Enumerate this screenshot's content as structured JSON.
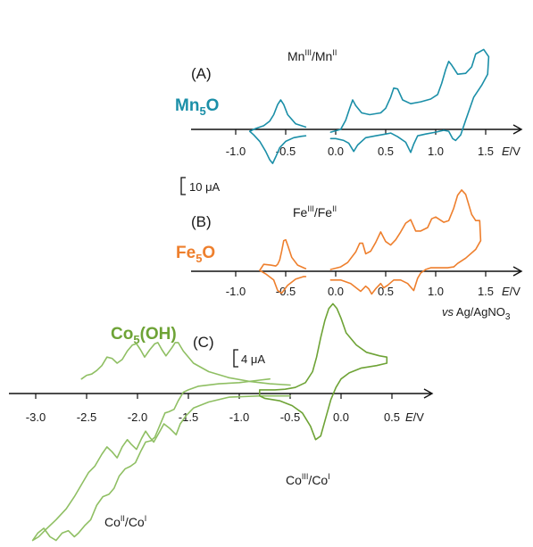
{
  "chart_data": [
    {
      "type": "line",
      "panel_label": "(A)",
      "compound": "Mn",
      "compound_sub": "5",
      "compound_tail": "O",
      "couple": {
        "a": "Mn",
        "a_sup": "III",
        "b": "Mn",
        "b_sup": "II"
      },
      "color": "#1b8fa8",
      "x_ticks": [
        "-1.0",
        "-0.5",
        "0.0",
        "0.5",
        "1.0",
        "1.5"
      ],
      "xlabel_italic": "E",
      "xlabel_unit": "/V",
      "xlim": [
        -1.1,
        1.65
      ],
      "scale_bar": "10 μA",
      "series": [
        {
          "x": [
            -0.3,
            -0.4,
            -0.48,
            -0.52,
            -0.55,
            -0.58,
            -0.62,
            -0.66,
            -0.72,
            -0.8,
            -0.86,
            -0.82,
            -0.76,
            -0.7,
            -0.66,
            -0.63,
            -0.6,
            -0.56,
            -0.5,
            -0.42,
            -0.34,
            -0.3
          ],
          "y": [
            0.25,
            0.6,
            1.6,
            2.7,
            3.2,
            2.7,
            1.6,
            0.9,
            0.4,
            0.1,
            -0.2,
            -0.6,
            -1.3,
            -2.4,
            -3.3,
            -3.7,
            -3.0,
            -2.0,
            -1.3,
            -0.9,
            -0.75,
            -0.7
          ]
        },
        {
          "x": [
            -0.05,
            0.05,
            0.1,
            0.14,
            0.17,
            0.2,
            0.26,
            0.34,
            0.45,
            0.5,
            0.55,
            0.58,
            0.62,
            0.67,
            0.75,
            0.85,
            0.95,
            1.02,
            1.06,
            1.1,
            1.13,
            1.16,
            1.22,
            1.3,
            1.36,
            1.4,
            1.48,
            1.53,
            1.52,
            1.46,
            1.38,
            1.3,
            1.25,
            1.2,
            1.17,
            1.13,
            1.08,
            1.0,
            0.9,
            0.82,
            0.78,
            0.75,
            0.7,
            0.62,
            0.55,
            0.5,
            0.4,
            0.3,
            0.22,
            0.18,
            0.13,
            0.08,
            0.0,
            -0.05
          ],
          "y": [
            -0.3,
            0.0,
            1.0,
            2.3,
            3.2,
            2.6,
            1.8,
            1.6,
            1.8,
            2.3,
            3.5,
            4.5,
            4.4,
            3.2,
            2.8,
            3.0,
            3.3,
            3.8,
            5.0,
            6.5,
            7.4,
            7.0,
            6.0,
            6.1,
            6.8,
            8.2,
            8.7,
            7.9,
            6.0,
            4.8,
            3.5,
            1.0,
            -0.6,
            -1.2,
            -1.0,
            -0.2,
            -0.1,
            -0.3,
            -0.5,
            -0.7,
            -1.6,
            -2.5,
            -1.4,
            -0.8,
            -0.4,
            -0.5,
            -0.7,
            -0.9,
            -1.7,
            -2.4,
            -1.5,
            -1.2,
            -1.0,
            -1.0
          ]
        }
      ]
    },
    {
      "type": "line",
      "panel_label": "(B)",
      "compound": "Fe",
      "compound_sub": "5",
      "compound_tail": "O",
      "couple": {
        "a": "Fe",
        "a_sup": "III",
        "b": "Fe",
        "b_sup": "II"
      },
      "color": "#ee7f2d",
      "x_ticks": [
        "-1.0",
        "-0.5",
        "0.0",
        "0.5",
        "1.0",
        "1.5"
      ],
      "xlabel_italic": "E",
      "xlabel_unit": "/V",
      "xlim": [
        -1.1,
        1.65
      ],
      "reference_italic": "vs",
      "reference": "Ag/AgNO",
      "reference_sub": "3",
      "series": [
        {
          "x": [
            -0.3,
            -0.38,
            -0.44,
            -0.48,
            -0.5,
            -0.52,
            -0.54,
            -0.56,
            -0.58,
            -0.6,
            -0.65,
            -0.72,
            -0.76,
            -0.7,
            -0.62,
            -0.58,
            -0.54,
            -0.48,
            -0.4,
            -0.32,
            -0.3
          ],
          "y": [
            0.3,
            0.7,
            1.6,
            3.0,
            3.6,
            3.5,
            2.3,
            1.3,
            0.8,
            0.6,
            0.7,
            0.8,
            0.1,
            -0.3,
            -1.0,
            -2.2,
            -2.5,
            -1.6,
            -0.9,
            -0.6,
            -0.6
          ]
        },
        {
          "x": [
            -0.05,
            0.05,
            0.12,
            0.2,
            0.24,
            0.27,
            0.3,
            0.35,
            0.4,
            0.45,
            0.5,
            0.55,
            0.6,
            0.65,
            0.7,
            0.75,
            0.8,
            0.85,
            0.92,
            0.96,
            1.0,
            1.08,
            1.13,
            1.18,
            1.22,
            1.26,
            1.3,
            1.36,
            1.4,
            1.44,
            1.45,
            1.4,
            1.3,
            1.22,
            1.18,
            1.12,
            1.05,
            0.95,
            0.9,
            0.85,
            0.82,
            0.78,
            0.72,
            0.65,
            0.58,
            0.52,
            0.48,
            0.45,
            0.4,
            0.36,
            0.33,
            0.3,
            0.25,
            0.15,
            0.05,
            -0.05
          ],
          "y": [
            0.2,
            0.5,
            1.0,
            2.2,
            3.2,
            3.2,
            2.0,
            2.3,
            3.3,
            4.5,
            3.4,
            3.0,
            3.6,
            4.5,
            5.5,
            5.9,
            4.6,
            4.6,
            5.0,
            6.0,
            6.2,
            5.6,
            5.8,
            7.2,
            8.7,
            9.3,
            8.8,
            6.5,
            5.8,
            5.8,
            3.5,
            2.5,
            1.5,
            0.9,
            0.5,
            0.4,
            0.4,
            0.4,
            0.2,
            -0.2,
            -0.8,
            -2.2,
            -1.4,
            -1.0,
            -1.0,
            -1.6,
            -1.9,
            -1.4,
            -2.0,
            -2.6,
            -2.0,
            -1.7,
            -2.3,
            -1.4,
            -1.0,
            -1.0
          ]
        }
      ]
    },
    {
      "type": "line",
      "panel_label": "(C)",
      "compound": "Co",
      "compound_sub": "5",
      "compound_tail": "(OH)",
      "couple_right": {
        "a": "Co",
        "a_sup": "III",
        "b": "Co",
        "b_sup": "I"
      },
      "couple_left": {
        "a": "Co",
        "a_sup": "II",
        "b": "Co",
        "b_sup": "I"
      },
      "color": "#6ea336",
      "x_ticks": [
        "-3.0",
        "-2.5",
        "-2.0",
        "-1.5",
        "-1.0",
        "-0.5",
        "0.0",
        "0.5"
      ],
      "xlabel_italic": "E",
      "xlabel_unit": "/V",
      "xlim": [
        -3.3,
        0.75
      ],
      "scale_bar": "4 μA",
      "series": [
        {
          "name": "Co(II)/Co(I) scan",
          "x": [
            -0.5,
            -0.8,
            -1.1,
            -1.3,
            -1.45,
            -1.52,
            -1.58,
            -1.62,
            -1.68,
            -1.74,
            -1.78,
            -1.84,
            -1.88,
            -1.92,
            -1.96,
            -2.01,
            -2.06,
            -2.1,
            -2.15,
            -2.2,
            -2.25,
            -2.3,
            -2.35,
            -2.42,
            -2.48,
            -2.55,
            -2.62,
            -2.7,
            -2.8,
            -2.9,
            -2.97,
            -3.03,
            -2.98,
            -2.92,
            -2.86,
            -2.8,
            -2.74,
            -2.68,
            -2.62,
            -2.58,
            -2.52,
            -2.46,
            -2.4,
            -2.34,
            -2.28,
            -2.23,
            -2.18,
            -2.12,
            -2.07,
            -2.02,
            -1.97,
            -1.92,
            -1.87,
            -1.83,
            -1.78,
            -1.73,
            -1.69,
            -1.64,
            -1.6,
            -1.55,
            -1.5,
            -1.4,
            -1.2,
            -1.0,
            -0.8,
            -0.7
          ],
          "y": [
            -0.2,
            -0.2,
            -0.3,
            -0.7,
            -1.2,
            -1.8,
            -2.5,
            -3.4,
            -2.9,
            -2.5,
            -3.1,
            -4.0,
            -3.6,
            -3.1,
            -3.7,
            -4.6,
            -4.2,
            -3.8,
            -4.4,
            -5.3,
            -4.8,
            -4.4,
            -5.0,
            -6.0,
            -6.5,
            -7.5,
            -8.5,
            -9.5,
            -10.4,
            -11.2,
            -11.8,
            -12.1,
            -11.5,
            -11.1,
            -11.8,
            -12.1,
            -11.5,
            -11.3,
            -11.8,
            -11.5,
            -10.9,
            -10.4,
            -9.2,
            -8.5,
            -8.3,
            -7.8,
            -6.8,
            -6.2,
            -6.0,
            -5.7,
            -4.8,
            -4.0,
            -3.9,
            -3.6,
            -2.6,
            -1.6,
            -1.5,
            -1.3,
            -0.6,
            0.1,
            0.3,
            0.6,
            0.8,
            0.9,
            1.1,
            1.2
          ]
        },
        {
          "name": "Co(II)/Co(I) reverse",
          "x": [
            -0.5,
            -0.7,
            -0.9,
            -1.1,
            -1.3,
            -1.45,
            -1.55,
            -1.6,
            -1.63,
            -1.66,
            -1.72,
            -1.76,
            -1.8,
            -1.83,
            -1.88,
            -1.93,
            -1.97,
            -2.01,
            -2.05,
            -2.1,
            -2.15,
            -2.2,
            -2.25,
            -2.3,
            -2.35,
            -2.4,
            -2.45,
            -2.5,
            -2.55
          ],
          "y": [
            0.7,
            0.8,
            1.0,
            1.3,
            1.8,
            2.5,
            3.5,
            4.2,
            4.2,
            3.8,
            3.1,
            3.6,
            4.2,
            4.1,
            3.6,
            3.0,
            3.6,
            4.1,
            4.0,
            3.5,
            2.8,
            2.5,
            2.9,
            3.0,
            2.3,
            1.9,
            1.6,
            1.5,
            1.2
          ]
        },
        {
          "name": "Co(III)/Co(I) couple",
          "x": [
            -0.8,
            -0.65,
            -0.55,
            -0.45,
            -0.35,
            -0.28,
            -0.24,
            -0.2,
            -0.16,
            -0.12,
            -0.08,
            -0.04,
            0.0,
            0.05,
            0.15,
            0.25,
            0.38,
            0.45,
            0.45,
            0.35,
            0.2,
            0.08,
            0.0,
            -0.05,
            -0.1,
            -0.15,
            -0.2,
            -0.25,
            -0.3,
            -0.38,
            -0.48,
            -0.6,
            -0.75,
            -0.8,
            -0.8
          ],
          "y": [
            0.3,
            0.3,
            0.35,
            0.5,
            0.9,
            1.8,
            3.0,
            4.6,
            6.0,
            7.0,
            7.4,
            7.0,
            6.2,
            5.0,
            4.0,
            3.4,
            3.1,
            3.0,
            2.5,
            2.3,
            2.1,
            1.7,
            1.2,
            0.5,
            -0.5,
            -2.0,
            -3.5,
            -3.8,
            -2.7,
            -1.6,
            -1.0,
            -0.6,
            -0.4,
            -0.2,
            0.3
          ]
        }
      ]
    }
  ]
}
